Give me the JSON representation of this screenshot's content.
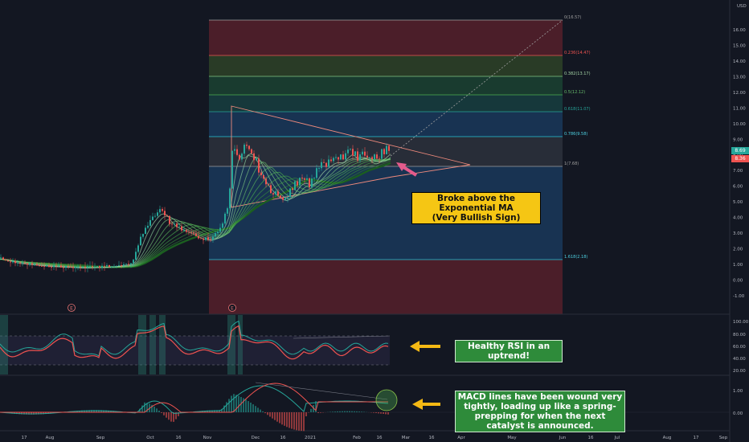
{
  "main_chart": {
    "currency": "USD",
    "price_axis": [
      "16.00",
      "15.00",
      "14.00",
      "13.00",
      "12.00",
      "11.00",
      "10.00",
      "9.00",
      "8.00",
      "7.00",
      "6.00",
      "5.00",
      "4.00",
      "3.00",
      "2.00",
      "1.00",
      "0.00",
      "-1.00"
    ],
    "last_price": "8.69",
    "second_price": "8.36",
    "earnings_marker": "E",
    "fib_labels": [
      "0(16.57)",
      "0.236(14.47)",
      "0.382(13.17)",
      "0.5(12.12)",
      "0.618(11.07)",
      "0.786(9.58)",
      "1(7.68)",
      "1.618(2.18)"
    ],
    "colors": {
      "up": "#26a69a",
      "down": "#ef5350",
      "ema_fast": "#4caf50",
      "ema_slow": "#1e7d32",
      "fib_blue": "#1e4a7a"
    }
  },
  "annotations": {
    "ma": "Broke above the Exponential MA\n(Very Bullish Sign)",
    "rsi": "Healthy RSI in an uptrend!",
    "macd": "MACD lines have been wound very tightly, loading up like a spring- prepping for when the next catalyst is announced."
  },
  "rsi_panel": {
    "axis": [
      "100.00",
      "80.00",
      "60.00",
      "40.00",
      "20.00"
    ]
  },
  "macd_panel": {
    "axis": [
      "1.00",
      "0.00"
    ]
  },
  "time_axis": [
    "17",
    "Aug",
    "Sep",
    "Oct",
    "16",
    "Nov",
    "Dec",
    "16",
    "2021",
    "Feb",
    "16",
    "Mar",
    "16",
    "Apr",
    "May",
    "Jun",
    "16",
    "Jul",
    "Aug",
    "17",
    "Sep"
  ],
  "chart_data": {
    "type": "candlestick",
    "x": [
      "Jul 17",
      "Aug",
      "Sep",
      "Oct 1",
      "Oct 16",
      "Nov 1",
      "Nov 16",
      "Dec 1",
      "Dec 16",
      "Jan 1 2021",
      "Jan 16",
      "Feb 1",
      "Feb 16"
    ],
    "close": [
      1.2,
      0.8,
      1.0,
      4.2,
      3.2,
      2.6,
      9.0,
      7.2,
      5.8,
      6.6,
      7.6,
      8.0,
      8.69
    ],
    "ylim": [
      -1,
      17
    ]
  }
}
